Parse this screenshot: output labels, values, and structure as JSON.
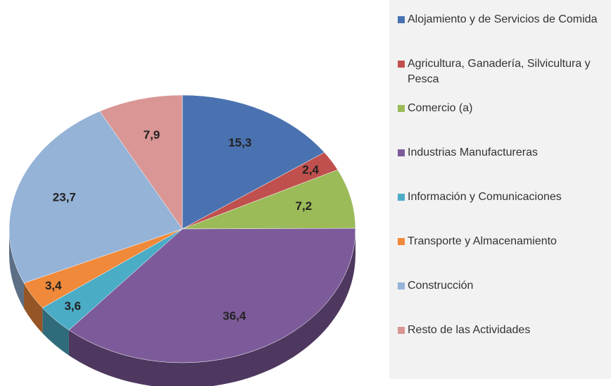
{
  "chart_data": {
    "type": "pie",
    "categories": [
      "Alojamiento y de Servicios de Comida",
      "Agricultura, Ganadería, Silvicultura y Pesca",
      "Comercio (a)",
      "Industrias Manufactureras",
      "Información y Comunicaciones",
      "Transporte y Almacenamiento",
      "Construcción",
      "Resto de las  Actividades"
    ],
    "values": [
      15.3,
      2.4,
      7.2,
      36.4,
      3.6,
      3.4,
      23.7,
      7.9
    ],
    "value_labels": [
      "15,3",
      "2,4",
      "7,2",
      "36,4",
      "3,6",
      "3,4",
      "23,7",
      "7,9"
    ],
    "colors": [
      "#4a72b0",
      "#c0504d",
      "#9bbb59",
      "#7d5b9a",
      "#4bacc6",
      "#f0893a",
      "#95b3d7",
      "#d99694"
    ],
    "legend": "right"
  }
}
